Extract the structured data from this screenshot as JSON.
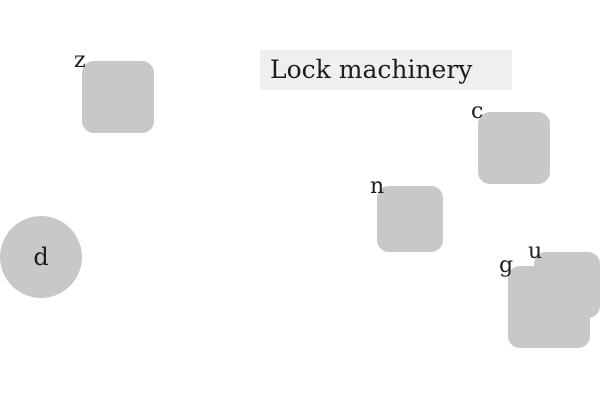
{
  "title": "Lock machinery",
  "items": {
    "z": "z",
    "c": "c",
    "n": "n",
    "u": "u",
    "g": "g",
    "d": "d"
  },
  "colors": {
    "tile": "#c8c8c8",
    "title_background": "#efefef",
    "background": "#ffffff",
    "text": "#1d1d1d"
  }
}
